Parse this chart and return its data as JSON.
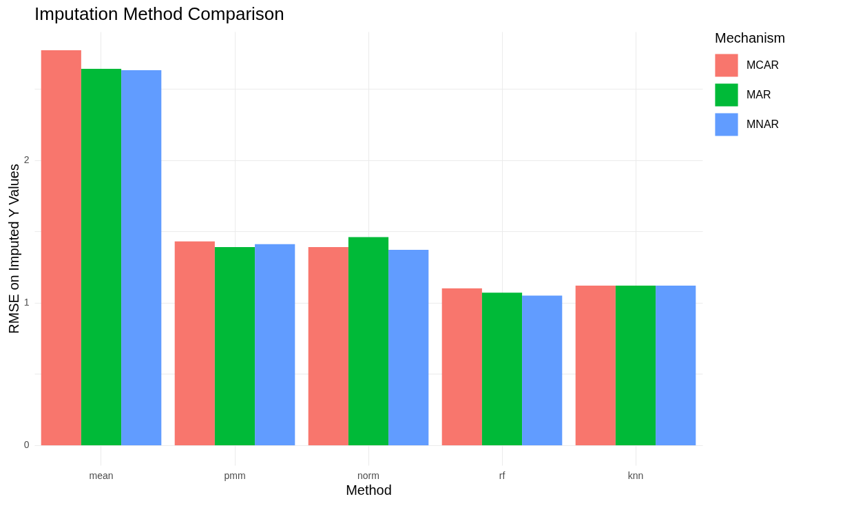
{
  "chart_data": {
    "type": "bar",
    "title": "Imputation Method Comparison",
    "xlabel": "Method",
    "ylabel": "RMSE on Imputed Y Values",
    "legend_title": "Mechanism",
    "categories": [
      "mean",
      "pmm",
      "norm",
      "rf",
      "knn"
    ],
    "series": [
      {
        "name": "MCAR",
        "color": "#f8766d",
        "values": [
          2.77,
          1.43,
          1.39,
          1.1,
          1.12
        ]
      },
      {
        "name": "MAR",
        "color": "#00ba38",
        "values": [
          2.64,
          1.39,
          1.46,
          1.07,
          1.12
        ]
      },
      {
        "name": "MNAR",
        "color": "#619cff",
        "values": [
          2.63,
          1.41,
          1.37,
          1.05,
          1.12
        ]
      }
    ],
    "ylim": [
      -0.14,
      2.9
    ],
    "yticks": [
      0,
      {
        "value": 0.5,
        "label": null
      },
      1,
      {
        "value": 1.5,
        "label": null
      },
      2,
      {
        "value": 2.5,
        "label": null
      }
    ],
    "grid": true,
    "legend": "right"
  }
}
